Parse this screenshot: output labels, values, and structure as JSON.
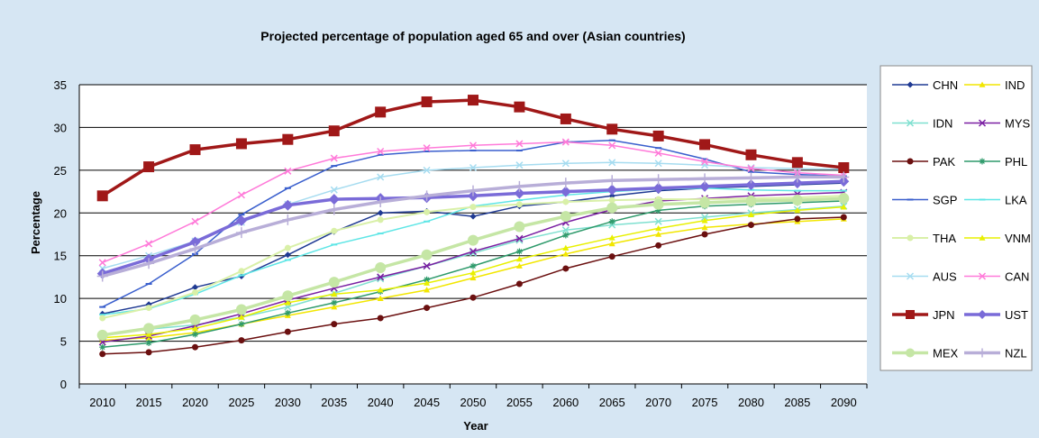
{
  "chart_data": {
    "type": "line",
    "title": "Projected percentage of population aged 65 and over (Asian countries)",
    "xlabel": "Year",
    "ylabel": "Percentage",
    "x": [
      "2010",
      "2015",
      "2020",
      "2025",
      "2030",
      "2035",
      "2040",
      "2045",
      "2050",
      "2055",
      "2060",
      "2065",
      "2070",
      "2075",
      "2080",
      "2085",
      "2090"
    ],
    "ylim": [
      0,
      35
    ],
    "yticks": [
      "0",
      "5",
      "10",
      "15",
      "20",
      "25",
      "30",
      "35"
    ],
    "grid": "horizontal",
    "legend_position": "right",
    "series": [
      {
        "name": "CHN",
        "color": "#1f3a93",
        "marker": "diamond",
        "width": 1.5,
        "values": [
          8.2,
          9.3,
          11.3,
          12.6,
          15.1,
          17.8,
          20.0,
          20.2,
          19.6,
          20.8,
          21.3,
          22.0,
          22.6,
          22.9,
          23.1,
          23.3,
          23.5
        ]
      },
      {
        "name": "IND",
        "color": "#f2e600",
        "marker": "triangle",
        "width": 1.5,
        "values": [
          5.1,
          5.4,
          6.0,
          7.0,
          8.0,
          9.0,
          10.0,
          11.0,
          12.4,
          13.8,
          15.2,
          16.4,
          17.5,
          18.3,
          18.7,
          19.0,
          19.3
        ]
      },
      {
        "name": "IDN",
        "color": "#7fe0d0",
        "marker": "x",
        "width": 1.5,
        "values": [
          5.8,
          6.4,
          6.9,
          7.8,
          9.0,
          10.6,
          12.3,
          13.8,
          15.3,
          16.8,
          18.0,
          18.6,
          19.0,
          19.5,
          20.0,
          20.4,
          20.8
        ]
      },
      {
        "name": "MYS",
        "color": "#7a1fa2",
        "marker": "x",
        "width": 1.5,
        "values": [
          4.9,
          5.6,
          6.8,
          8.2,
          9.8,
          11.2,
          12.5,
          13.8,
          15.5,
          17.0,
          18.9,
          20.4,
          21.4,
          21.7,
          22.0,
          22.2,
          22.4
        ]
      },
      {
        "name": "PAK",
        "color": "#6b1010",
        "marker": "circle",
        "width": 1.5,
        "values": [
          3.5,
          3.7,
          4.3,
          5.1,
          6.1,
          7.0,
          7.7,
          8.9,
          10.1,
          11.7,
          13.5,
          14.9,
          16.2,
          17.5,
          18.6,
          19.3,
          19.5
        ]
      },
      {
        "name": "PHL",
        "color": "#2e9a6b",
        "marker": "star",
        "width": 1.5,
        "values": [
          4.3,
          4.8,
          5.8,
          7.0,
          8.3,
          9.5,
          10.8,
          12.2,
          13.8,
          15.5,
          17.4,
          19.0,
          20.3,
          20.8,
          21.0,
          21.2,
          21.4
        ]
      },
      {
        "name": "SGP",
        "color": "#3a5fcd",
        "marker": "dash",
        "width": 1.5,
        "values": [
          9.0,
          11.7,
          15.2,
          19.8,
          22.9,
          25.5,
          26.8,
          27.2,
          27.3,
          27.3,
          28.3,
          28.5,
          27.6,
          26.3,
          24.8,
          24.5,
          24.3
        ]
      },
      {
        "name": "LKA",
        "color": "#5fe6e6",
        "marker": "dash",
        "width": 1.5,
        "values": [
          8.1,
          8.8,
          10.5,
          12.7,
          14.5,
          16.3,
          17.6,
          19.0,
          20.8,
          21.5,
          22.1,
          22.5,
          22.8,
          22.9,
          22.7,
          22.6,
          22.6
        ]
      },
      {
        "name": "THA",
        "color": "#d9f0a8",
        "marker": "circle",
        "width": 2,
        "values": [
          7.7,
          8.9,
          10.7,
          13.2,
          15.9,
          17.9,
          19.2,
          20.1,
          20.7,
          21.0,
          21.3,
          21.5,
          21.6,
          21.6,
          21.7,
          21.8,
          22.0
        ]
      },
      {
        "name": "VNM",
        "color": "#e8f000",
        "marker": "triangle",
        "width": 1.5,
        "values": [
          5.4,
          5.8,
          6.5,
          7.8,
          9.5,
          10.5,
          11.0,
          11.8,
          13.0,
          14.6,
          15.9,
          17.1,
          18.2,
          19.1,
          19.8,
          20.3,
          20.7
        ]
      },
      {
        "name": "AUS",
        "color": "#a6dcf0",
        "marker": "x",
        "width": 1.5,
        "values": [
          13.5,
          15.0,
          16.7,
          18.9,
          21.0,
          22.7,
          24.2,
          25.0,
          25.3,
          25.6,
          25.8,
          25.9,
          25.8,
          25.6,
          25.3,
          25.2,
          25.1
        ]
      },
      {
        "name": "CAN",
        "color": "#ff7ad9",
        "marker": "x",
        "width": 1.5,
        "values": [
          14.2,
          16.4,
          19.0,
          22.1,
          24.9,
          26.4,
          27.2,
          27.6,
          27.9,
          28.1,
          28.3,
          27.9,
          27.0,
          26.0,
          25.2,
          24.7,
          24.4
        ]
      },
      {
        "name": "JPN",
        "color": "#a01818",
        "marker": "square",
        "width": 3.5,
        "values": [
          22.0,
          25.4,
          27.4,
          28.1,
          28.6,
          29.6,
          31.8,
          33.0,
          33.2,
          32.4,
          31.0,
          29.8,
          29.0,
          28.0,
          26.8,
          25.9,
          25.3
        ]
      },
      {
        "name": "UST",
        "color": "#7a6bd8",
        "marker": "diamond",
        "width": 3.5,
        "values": [
          12.9,
          14.6,
          16.6,
          19.1,
          20.9,
          21.6,
          21.7,
          21.8,
          22.0,
          22.3,
          22.5,
          22.7,
          22.9,
          23.1,
          23.3,
          23.5,
          23.7
        ]
      },
      {
        "name": "MEX",
        "color": "#c5e6a5",
        "marker": "circle",
        "width": 3.5,
        "values": [
          5.7,
          6.5,
          7.5,
          8.7,
          10.3,
          11.9,
          13.6,
          15.1,
          16.8,
          18.4,
          19.6,
          20.6,
          21.0,
          21.2,
          21.4,
          21.5,
          21.7
        ]
      },
      {
        "name": "NZL",
        "color": "#b8aed8",
        "marker": "plus",
        "width": 3.5,
        "values": [
          12.6,
          14.1,
          15.8,
          17.7,
          19.2,
          20.4,
          21.3,
          22.0,
          22.6,
          23.1,
          23.5,
          23.8,
          23.9,
          24.0,
          24.1,
          24.2,
          24.2
        ]
      }
    ]
  }
}
